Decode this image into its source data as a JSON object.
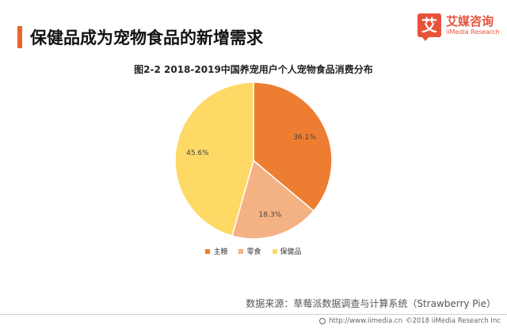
{
  "header": {
    "title": "保健品成为宠物食品的新增需求",
    "accent_color": "#e8672a"
  },
  "logo": {
    "mark": "艾",
    "name_cn": "艾媒咨询",
    "name_en": "iiMedia Research",
    "color": "#e8523a"
  },
  "chart_data": {
    "type": "pie",
    "title": "图2-2  2018-2019中国养宠用户个人宠物食品消费分布",
    "categories": [
      "主粮",
      "零食",
      "保健品"
    ],
    "values": [
      36.1,
      18.3,
      45.6
    ],
    "labels": [
      "36.1%",
      "18.3%",
      "45.6%"
    ],
    "colors": [
      "#ed7d31",
      "#f4b183",
      "#ffd966"
    ],
    "legend_position": "bottom"
  },
  "source": {
    "text": "数据来源：草莓派数据调查与计算系统（Strawberry Pie）"
  },
  "footer": {
    "website": "http://www.iimedia.cn",
    "copyright": "©2018  iiMedia Research  Inc"
  }
}
